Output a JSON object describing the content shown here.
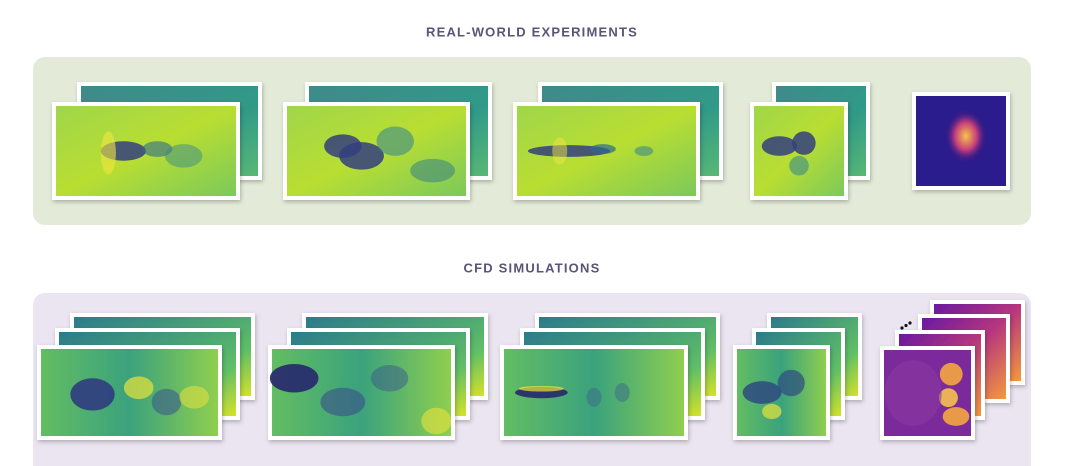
{
  "sections": [
    {
      "title": "REAL-WORLD EXPERIMENTS"
    },
    {
      "title": "CFD SIMULATIONS"
    }
  ]
}
